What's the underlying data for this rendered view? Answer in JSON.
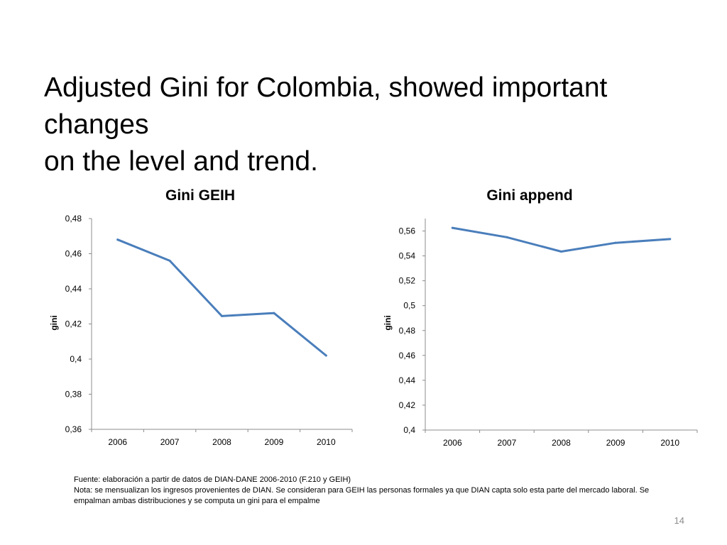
{
  "slide": {
    "title_line1": "Adjusted Gini for Colombia, showed important changes",
    "title_line2": "on the level and trend.",
    "source_note": "Fuente: elaboración a partir de datos de DIAN-DANE 2006-2010 (F.210 y GEIH)",
    "note_line1": "Nota: se mensualizan los ingresos provenientes de DIAN. Se consideran para GEIH las personas formales ya que DIAN capta solo esta parte del mercado laboral.  Se",
    "note_line2": "empalman ambas distribuciones y se computa un gini para el empalme",
    "page_number": "14"
  },
  "colors": {
    "series": "#4a7ebb",
    "axis": "#8c8c8c"
  },
  "chart_data": [
    {
      "type": "line",
      "title": "Gini GEIH",
      "xlabel": "",
      "ylabel": "gini",
      "categories": [
        "2006",
        "2007",
        "2008",
        "2009",
        "2010"
      ],
      "series": [
        {
          "name": "gini",
          "values": [
            0.468,
            0.456,
            0.4245,
            0.4262,
            0.402
          ]
        }
      ],
      "ylim": [
        0.36,
        0.48
      ],
      "yticks": [
        0.36,
        0.38,
        0.4,
        0.42,
        0.44,
        0.46,
        0.48
      ],
      "ytick_labels": [
        "0,36",
        "0,38",
        "0,4",
        "0,42",
        "0,44",
        "0,46",
        "0,48"
      ],
      "grid": false,
      "legend": "none"
    },
    {
      "type": "line",
      "title": "Gini append",
      "xlabel": "",
      "ylabel": "gini",
      "categories": [
        "2006",
        "2007",
        "2008",
        "2009",
        "2010"
      ],
      "series": [
        {
          "name": "gini",
          "values": [
            0.5625,
            0.555,
            0.5435,
            0.5505,
            0.5535
          ]
        }
      ],
      "ylim": [
        0.4,
        0.57
      ],
      "yticks": [
        0.4,
        0.42,
        0.44,
        0.46,
        0.48,
        0.5,
        0.52,
        0.54,
        0.56
      ],
      "ytick_labels": [
        "0,4",
        "0,42",
        "0,44",
        "0,46",
        "0,48",
        "0,5",
        "0,52",
        "0,54",
        "0,56"
      ],
      "grid": false,
      "legend": "none"
    }
  ]
}
